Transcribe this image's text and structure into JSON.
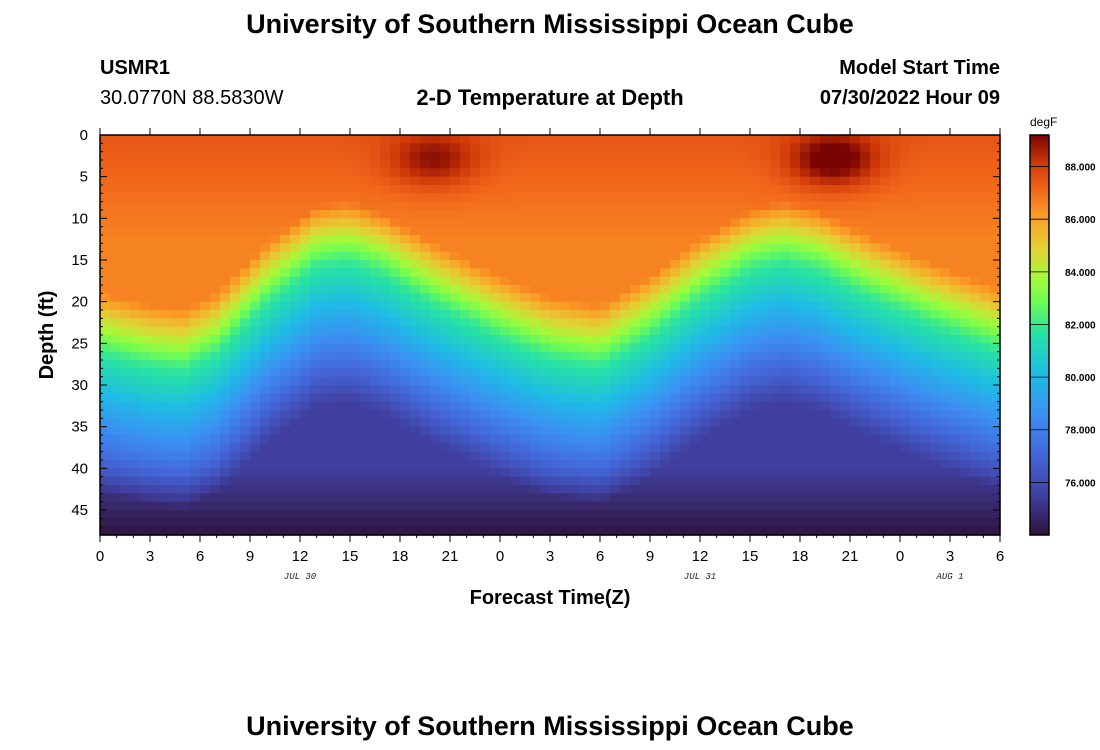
{
  "page": {
    "title": "University of Southern Mississippi Ocean Cube",
    "footer_title": "University of Southern Mississippi Ocean Cube",
    "station_id": "USMR1",
    "coordinates": "30.0770N  88.5830W",
    "subtitle": "2-D Temperature at Depth",
    "model_start_label": "Model Start Time",
    "model_start_value": "07/30/2022 Hour 09"
  },
  "chart_data": {
    "type": "heatmap",
    "title": "2-D Temperature at Depth",
    "xlabel": "Forecast Time(Z)",
    "ylabel": "Depth (ft)",
    "colorbar_label": "degF",
    "x_range_hours": [
      0,
      54
    ],
    "x_ticks": [
      "0",
      "3",
      "6",
      "9",
      "12",
      "15",
      "18",
      "21",
      "0",
      "3",
      "6",
      "9",
      "12",
      "15",
      "18",
      "21",
      "0",
      "3",
      "6"
    ],
    "date_labels": [
      {
        "hour": 12,
        "label": "JUL 30"
      },
      {
        "hour": 36,
        "label": "JUL 31"
      },
      {
        "hour": 51,
        "label": "AUG 1"
      }
    ],
    "y_range_ft": [
      0,
      48
    ],
    "y_ticks": [
      0,
      5,
      10,
      15,
      20,
      25,
      30,
      35,
      40,
      45
    ],
    "color_range_degF": [
      74.0,
      89.2
    ],
    "colorbar_ticks": [
      "76.000",
      "78.000",
      "80.000",
      "82.000",
      "84.000",
      "86.000",
      "88.000"
    ],
    "colorbar_tick_values": [
      76,
      78,
      80,
      82,
      84,
      86,
      88
    ],
    "thermocline_depth_ft": [
      [
        0,
        26
      ],
      [
        3,
        27.5
      ],
      [
        5,
        28
      ],
      [
        7,
        26
      ],
      [
        10,
        20
      ],
      [
        13,
        15.5
      ],
      [
        15,
        15
      ],
      [
        17,
        16.5
      ],
      [
        20,
        20
      ],
      [
        24,
        24
      ],
      [
        27,
        26.5
      ],
      [
        30,
        27.5
      ],
      [
        33,
        24
      ],
      [
        36,
        19.5
      ],
      [
        39,
        16
      ],
      [
        41,
        15
      ],
      [
        43,
        16
      ],
      [
        46,
        19
      ],
      [
        50,
        22.5
      ],
      [
        54,
        25.5
      ]
    ],
    "surface_warm_max": [
      {
        "hour": 20,
        "depth_ft": 3,
        "degF": 88.7
      },
      {
        "hour": 44,
        "depth_ft": 3,
        "degF": 89.2
      }
    ]
  }
}
